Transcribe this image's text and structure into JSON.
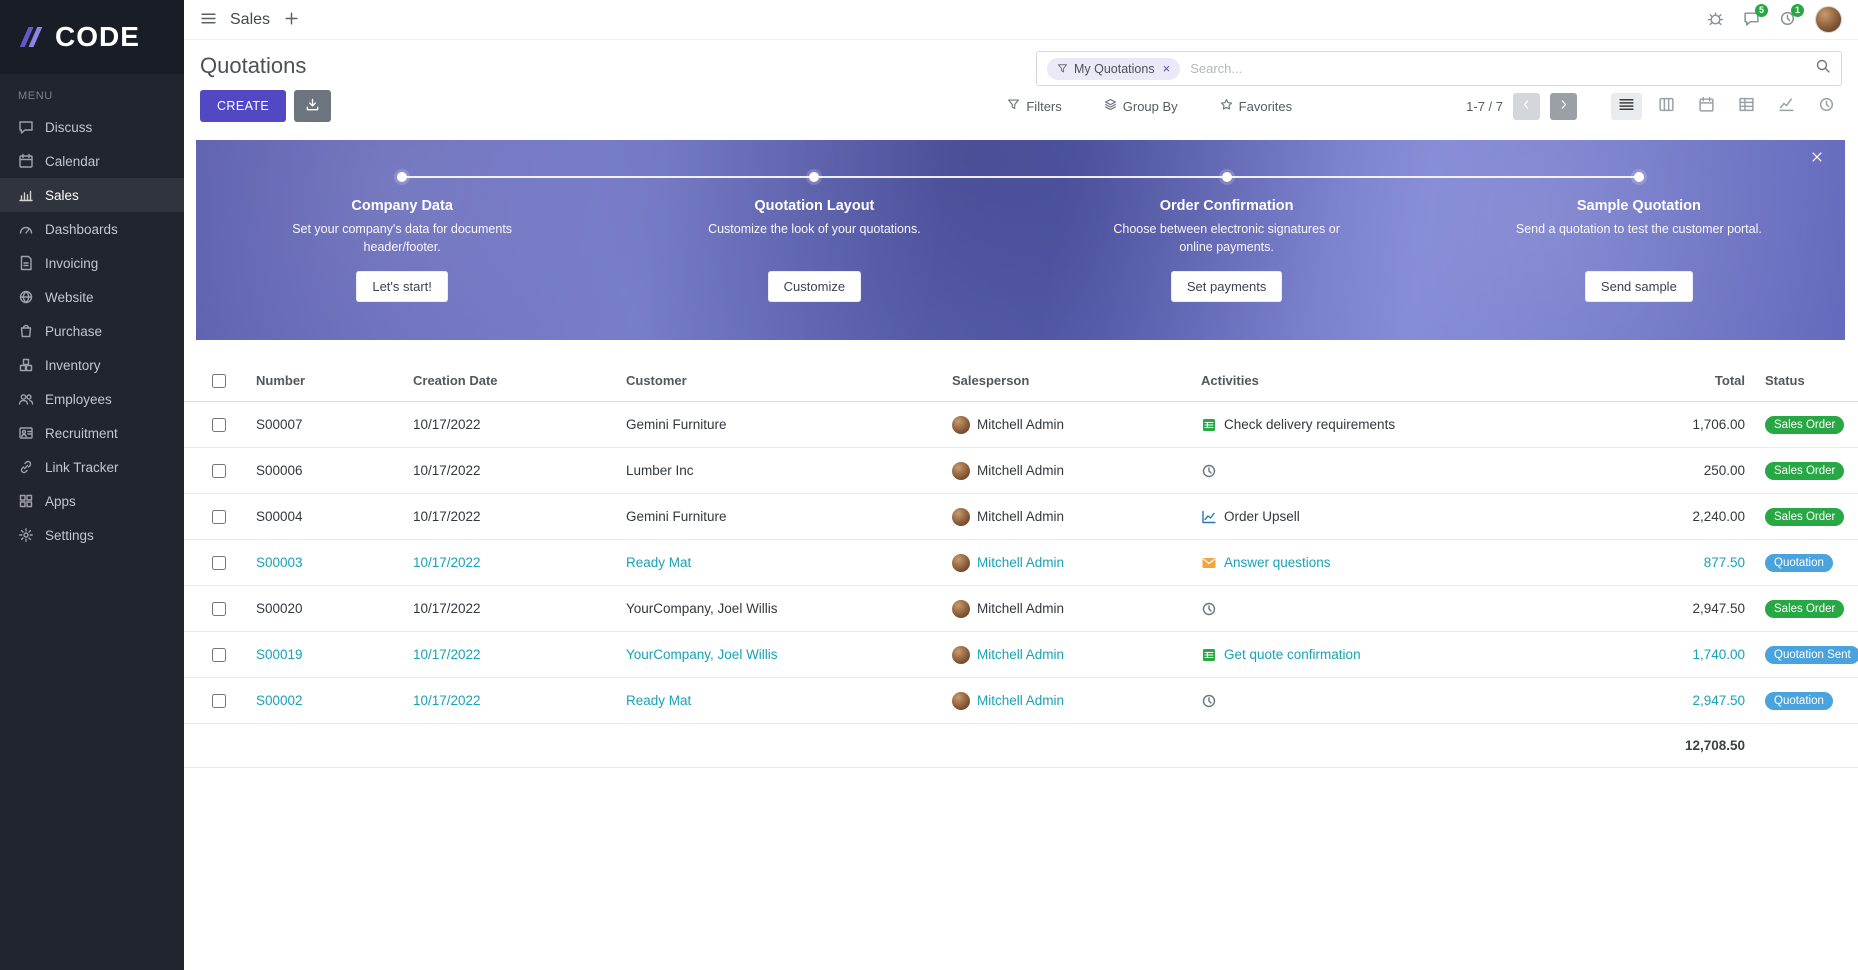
{
  "brand": {
    "logo_text": "CODE",
    "menu_label": "MENU"
  },
  "sidebar": {
    "items": [
      {
        "label": "Discuss",
        "icon": "chat"
      },
      {
        "label": "Calendar",
        "icon": "calendar"
      },
      {
        "label": "Sales",
        "icon": "sales",
        "active": true
      },
      {
        "label": "Dashboards",
        "icon": "dashboard"
      },
      {
        "label": "Invoicing",
        "icon": "invoice"
      },
      {
        "label": "Website",
        "icon": "globe"
      },
      {
        "label": "Purchase",
        "icon": "purchase"
      },
      {
        "label": "Inventory",
        "icon": "inventory"
      },
      {
        "label": "Employees",
        "icon": "employees"
      },
      {
        "label": "Recruitment",
        "icon": "recruitment"
      },
      {
        "label": "Link Tracker",
        "icon": "link"
      },
      {
        "label": "Apps",
        "icon": "apps"
      },
      {
        "label": "Settings",
        "icon": "settings"
      }
    ]
  },
  "topbar": {
    "app_name": "Sales",
    "messages_badge": "5",
    "activity_badge": "1"
  },
  "control_panel": {
    "title": "Quotations",
    "create_label": "CREATE",
    "search_facet": "My Quotations",
    "search_placeholder": "Search...",
    "filters_label": "Filters",
    "group_by_label": "Group By",
    "favorites_label": "Favorites",
    "pager": "1-7 / 7",
    "views": [
      {
        "name": "list",
        "active": true
      },
      {
        "name": "kanban",
        "active": false
      },
      {
        "name": "calendar",
        "active": false
      },
      {
        "name": "pivot",
        "active": false
      },
      {
        "name": "graph",
        "active": false
      },
      {
        "name": "activity",
        "active": false
      }
    ]
  },
  "banner": {
    "steps": [
      {
        "title": "Company Data",
        "desc": "Set your company's data for documents header/footer.",
        "button": "Let's start!"
      },
      {
        "title": "Quotation Layout",
        "desc": "Customize the look of your quotations.",
        "button": "Customize"
      },
      {
        "title": "Order Confirmation",
        "desc": "Choose between electronic signatures or online payments.",
        "button": "Set payments"
      },
      {
        "title": "Sample Quotation",
        "desc": "Send a quotation to test the customer portal.",
        "button": "Send sample"
      }
    ]
  },
  "table": {
    "headers": {
      "number": "Number",
      "date": "Creation Date",
      "customer": "Customer",
      "salesperson": "Salesperson",
      "activities": "Activities",
      "total": "Total",
      "status": "Status"
    },
    "rows": [
      {
        "number": "S00007",
        "date": "10/17/2022",
        "customer": "Gemini Furniture",
        "salesperson": "Mitchell Admin",
        "activity_icon": "spreadsheet",
        "activity": "Check delivery requirements",
        "total": "1,706.00",
        "status": "Sales Order",
        "status_type": "success",
        "highlight": false
      },
      {
        "number": "S00006",
        "date": "10/17/2022",
        "customer": "Lumber Inc",
        "salesperson": "Mitchell Admin",
        "activity_icon": "clock",
        "activity": "",
        "total": "250.00",
        "status": "Sales Order",
        "status_type": "success",
        "highlight": false
      },
      {
        "number": "S00004",
        "date": "10/17/2022",
        "customer": "Gemini Furniture",
        "salesperson": "Mitchell Admin",
        "activity_icon": "linechart",
        "activity": "Order Upsell",
        "total": "2,240.00",
        "status": "Sales Order",
        "status_type": "success",
        "highlight": false
      },
      {
        "number": "S00003",
        "date": "10/17/2022",
        "customer": "Ready Mat",
        "salesperson": "Mitchell Admin",
        "activity_icon": "envelope",
        "activity": "Answer questions",
        "total": "877.50",
        "status": "Quotation",
        "status_type": "info",
        "highlight": true
      },
      {
        "number": "S00020",
        "date": "10/17/2022",
        "customer": "YourCompany, Joel Willis",
        "salesperson": "Mitchell Admin",
        "activity_icon": "clock",
        "activity": "",
        "total": "2,947.50",
        "status": "Sales Order",
        "status_type": "success",
        "highlight": false
      },
      {
        "number": "S00019",
        "date": "10/17/2022",
        "customer": "YourCompany, Joel Willis",
        "salesperson": "Mitchell Admin",
        "activity_icon": "spreadsheet",
        "activity": "Get quote confirmation",
        "total": "1,740.00",
        "status": "Quotation Sent",
        "status_type": "info",
        "highlight": true
      },
      {
        "number": "S00002",
        "date": "10/17/2022",
        "customer": "Ready Mat",
        "salesperson": "Mitchell Admin",
        "activity_icon": "clock",
        "activity": "",
        "total": "2,947.50",
        "status": "Quotation",
        "status_type": "info",
        "highlight": true
      }
    ],
    "footer_total": "12,708.50"
  },
  "colors": {
    "accent": "#5348c4",
    "success": "#28a745",
    "info": "#4aa3dd",
    "highlight_text": "#17a2b8",
    "sidebar_bg": "#21252e",
    "banner_bg": "#5d62b8"
  }
}
